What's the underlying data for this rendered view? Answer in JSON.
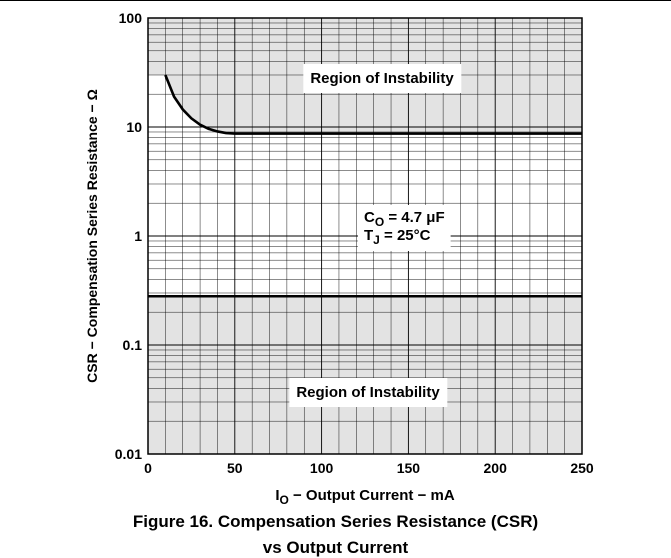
{
  "figure": {
    "caption_line1": "Figure 16. Compensation Series Resistance (CSR)",
    "caption_line2": "vs Output Current"
  },
  "chart_data": {
    "type": "line",
    "title": "",
    "xlabel_prefix": "I",
    "xlabel_sub": "O",
    "xlabel_rest": " − Output Current − mA",
    "ylabel": "CSR − Compensation Series Resistance − Ω",
    "xlim": [
      0,
      250
    ],
    "ylim": [
      0.01,
      100
    ],
    "yscale": "log",
    "x_ticks": [
      0,
      50,
      100,
      150,
      200,
      250
    ],
    "y_ticks": [
      0.01,
      0.1,
      1,
      10,
      100
    ],
    "y_tick_labels": [
      "0.01",
      "0.1",
      "1",
      "10",
      "100"
    ],
    "grid": true,
    "shade_color": "#e3e3e3",
    "series": [
      {
        "x": [
          10,
          15,
          20,
          25,
          30,
          35,
          40,
          45,
          50,
          55,
          100,
          150,
          200,
          250
        ],
        "y": [
          30,
          19,
          14.5,
          12,
          10.5,
          9.6,
          9.1,
          8.8,
          8.7,
          8.7,
          8.7,
          8.7,
          8.7,
          8.7
        ]
      },
      {
        "x": [
          0,
          250
        ],
        "y": [
          0.28,
          0.28
        ]
      }
    ],
    "annotations": {
      "upper_region": "Region of Instability",
      "lower_region": "Region of Instability",
      "co_main": "C",
      "co_sub": "O",
      "co_rest": " = 4.7 μF",
      "tj_main": "T",
      "tj_sub": "J",
      "tj_rest": " = 25°C"
    }
  }
}
